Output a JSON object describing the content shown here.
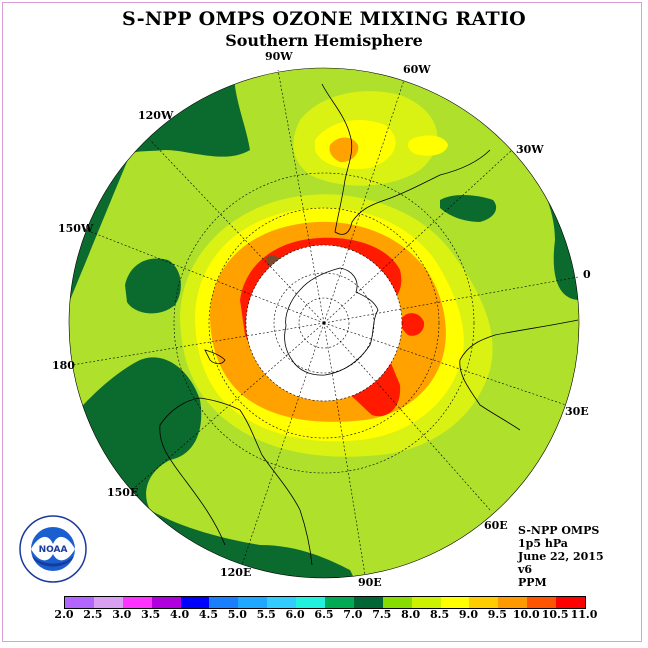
{
  "title": "S-NPP OMPS OZONE MIXING RATIO",
  "subtitle": "Southern Hemisphere",
  "longitudes": [
    {
      "label": "90W"
    },
    {
      "label": "60W"
    },
    {
      "label": "120W"
    },
    {
      "label": "30W"
    },
    {
      "label": "150W"
    },
    {
      "label": "0"
    },
    {
      "label": "180"
    },
    {
      "label": "30E"
    },
    {
      "label": "150E"
    },
    {
      "label": "60E"
    },
    {
      "label": "120E"
    },
    {
      "label": "90E"
    }
  ],
  "info": {
    "instrument": "S-NPP OMPS",
    "level": "1p5 hPa",
    "date": "June 22, 2015",
    "version": "v6",
    "units": "PPM"
  },
  "logo": {
    "text": "NOAA"
  },
  "colorbar": {
    "ticks": [
      "2.0",
      "2.5",
      "3.0",
      "3.5",
      "4.0",
      "4.5",
      "5.0",
      "5.5",
      "6.0",
      "6.5",
      "7.0",
      "7.5",
      "8.0",
      "8.5",
      "9.0",
      "9.5",
      "10.0",
      "10.5",
      "11.0"
    ],
    "colors": [
      "#b266ff",
      "#d9a0f2",
      "#ff33ff",
      "#b000e0",
      "#0000ff",
      "#1a7fff",
      "#1fa8ff",
      "#33ccff",
      "#22f2dd",
      "#00aa55",
      "#006633",
      "#88dd00",
      "#ccf200",
      "#ffff00",
      "#ffcc00",
      "#ff9900",
      "#ff5500",
      "#ff0000",
      "#7a4a2a"
    ]
  },
  "colors": {
    "dark_green": "#0b6b2e",
    "light_green": "#aee02c",
    "yellow_green": "#d9f213",
    "yellow": "#ffff00",
    "orange": "#ffa200",
    "red": "#ff1a00",
    "brown": "#7a4a2a"
  }
}
